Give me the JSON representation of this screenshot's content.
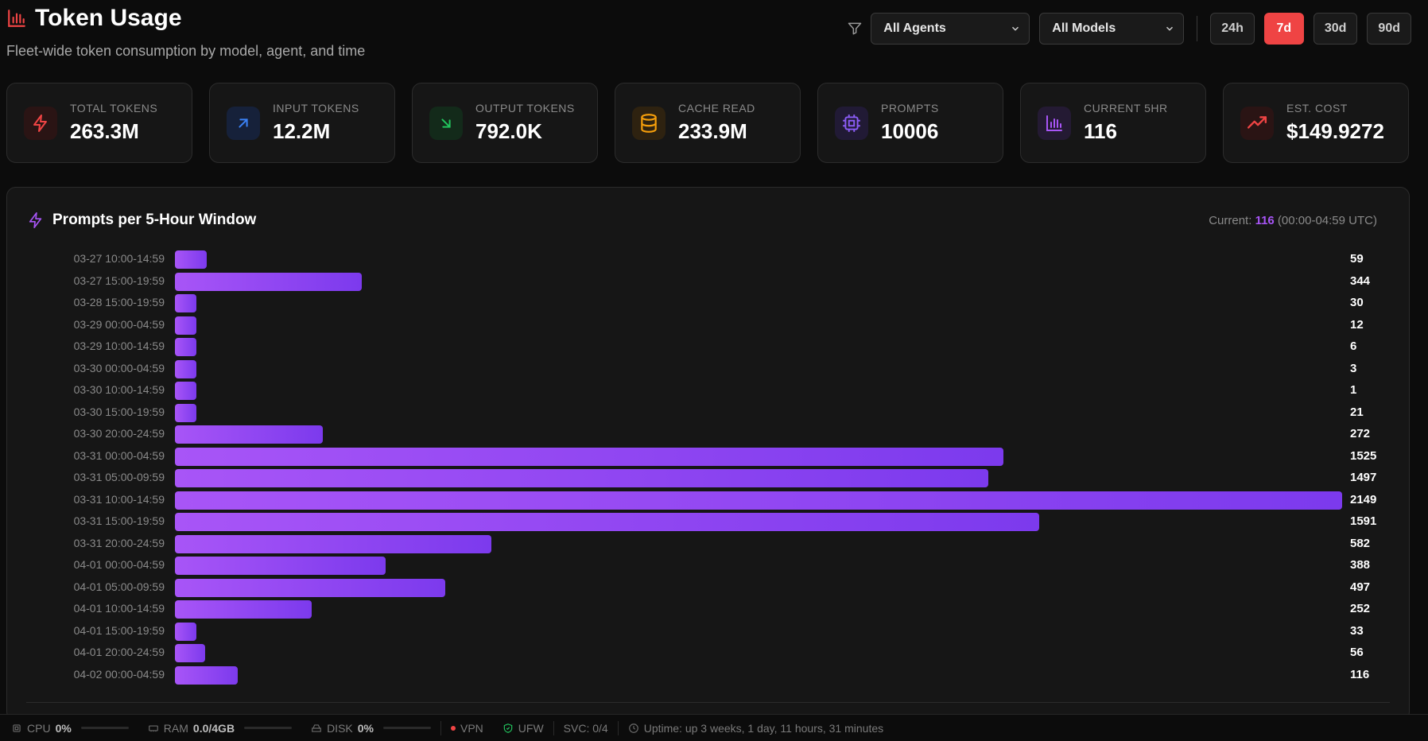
{
  "header": {
    "title": "Token Usage",
    "subtitle": "Fleet-wide token consumption by model, agent, and time"
  },
  "filters": {
    "agent": "All Agents",
    "model": "All Models",
    "ranges": [
      "24h",
      "7d",
      "30d",
      "90d"
    ],
    "active_range": "7d"
  },
  "stats": [
    {
      "label": "Total Tokens",
      "value": "263.3M",
      "icon": "bolt-icon",
      "color": "#ef4444",
      "bg": "#2a1414"
    },
    {
      "label": "Input Tokens",
      "value": "12.2M",
      "icon": "arrow-up-right-icon",
      "color": "#3b82f6",
      "bg": "#16213a"
    },
    {
      "label": "Output Tokens",
      "value": "792.0K",
      "icon": "arrow-down-right-icon",
      "color": "#22c55e",
      "bg": "#132a1a"
    },
    {
      "label": "Cache Read",
      "value": "233.9M",
      "icon": "database-icon",
      "color": "#f59e0b",
      "bg": "#2e2210"
    },
    {
      "label": "Prompts",
      "value": "10006",
      "icon": "cpu-icon",
      "color": "#8b5cf6",
      "bg": "#211a35"
    },
    {
      "label": "Current 5hr",
      "value": "116",
      "icon": "bar-chart-icon",
      "color": "#a855f7",
      "bg": "#241a33"
    },
    {
      "label": "Est. Cost",
      "value": "$149.9272",
      "icon": "trending-up-icon",
      "color": "#ef4444",
      "bg": "#2a1414"
    }
  ],
  "panel": {
    "title": "Prompts per 5-Hour Window",
    "current_prefix": "Current: ",
    "current_value": "116",
    "current_suffix": " (00:00-04:59 UTC)"
  },
  "chart_data": {
    "type": "bar",
    "orientation": "horizontal",
    "categories": [
      "03-27 10:00-14:59",
      "03-27 15:00-19:59",
      "03-28 15:00-19:59",
      "03-29 00:00-04:59",
      "03-29 10:00-14:59",
      "03-30 00:00-04:59",
      "03-30 10:00-14:59",
      "03-30 15:00-19:59",
      "03-30 20:00-24:59",
      "03-31 00:00-04:59",
      "03-31 05:00-09:59",
      "03-31 10:00-14:59",
      "03-31 15:00-19:59",
      "03-31 20:00-24:59",
      "04-01 00:00-04:59",
      "04-01 05:00-09:59",
      "04-01 10:00-14:59",
      "04-01 15:00-19:59",
      "04-01 20:00-24:59",
      "04-02 00:00-04:59"
    ],
    "values": [
      59,
      344,
      30,
      12,
      6,
      3,
      1,
      21,
      272,
      1525,
      1497,
      2149,
      1591,
      582,
      388,
      497,
      252,
      33,
      56,
      116
    ],
    "min_bar_value": 40,
    "color_start": "#a855f7",
    "color_end": "#7c3aed"
  },
  "status": {
    "cpu_label": "CPU",
    "cpu_value": "0%",
    "ram_label": "RAM",
    "ram_value": "0.0/4GB",
    "disk_label": "DISK",
    "disk_value": "0%",
    "vpn_label": "VPN",
    "ufw_label": "UFW",
    "svc_label": "SVC: 0/4",
    "uptime": "Uptime: up 3 weeks, 1 day, 11 hours, 31 minutes"
  }
}
